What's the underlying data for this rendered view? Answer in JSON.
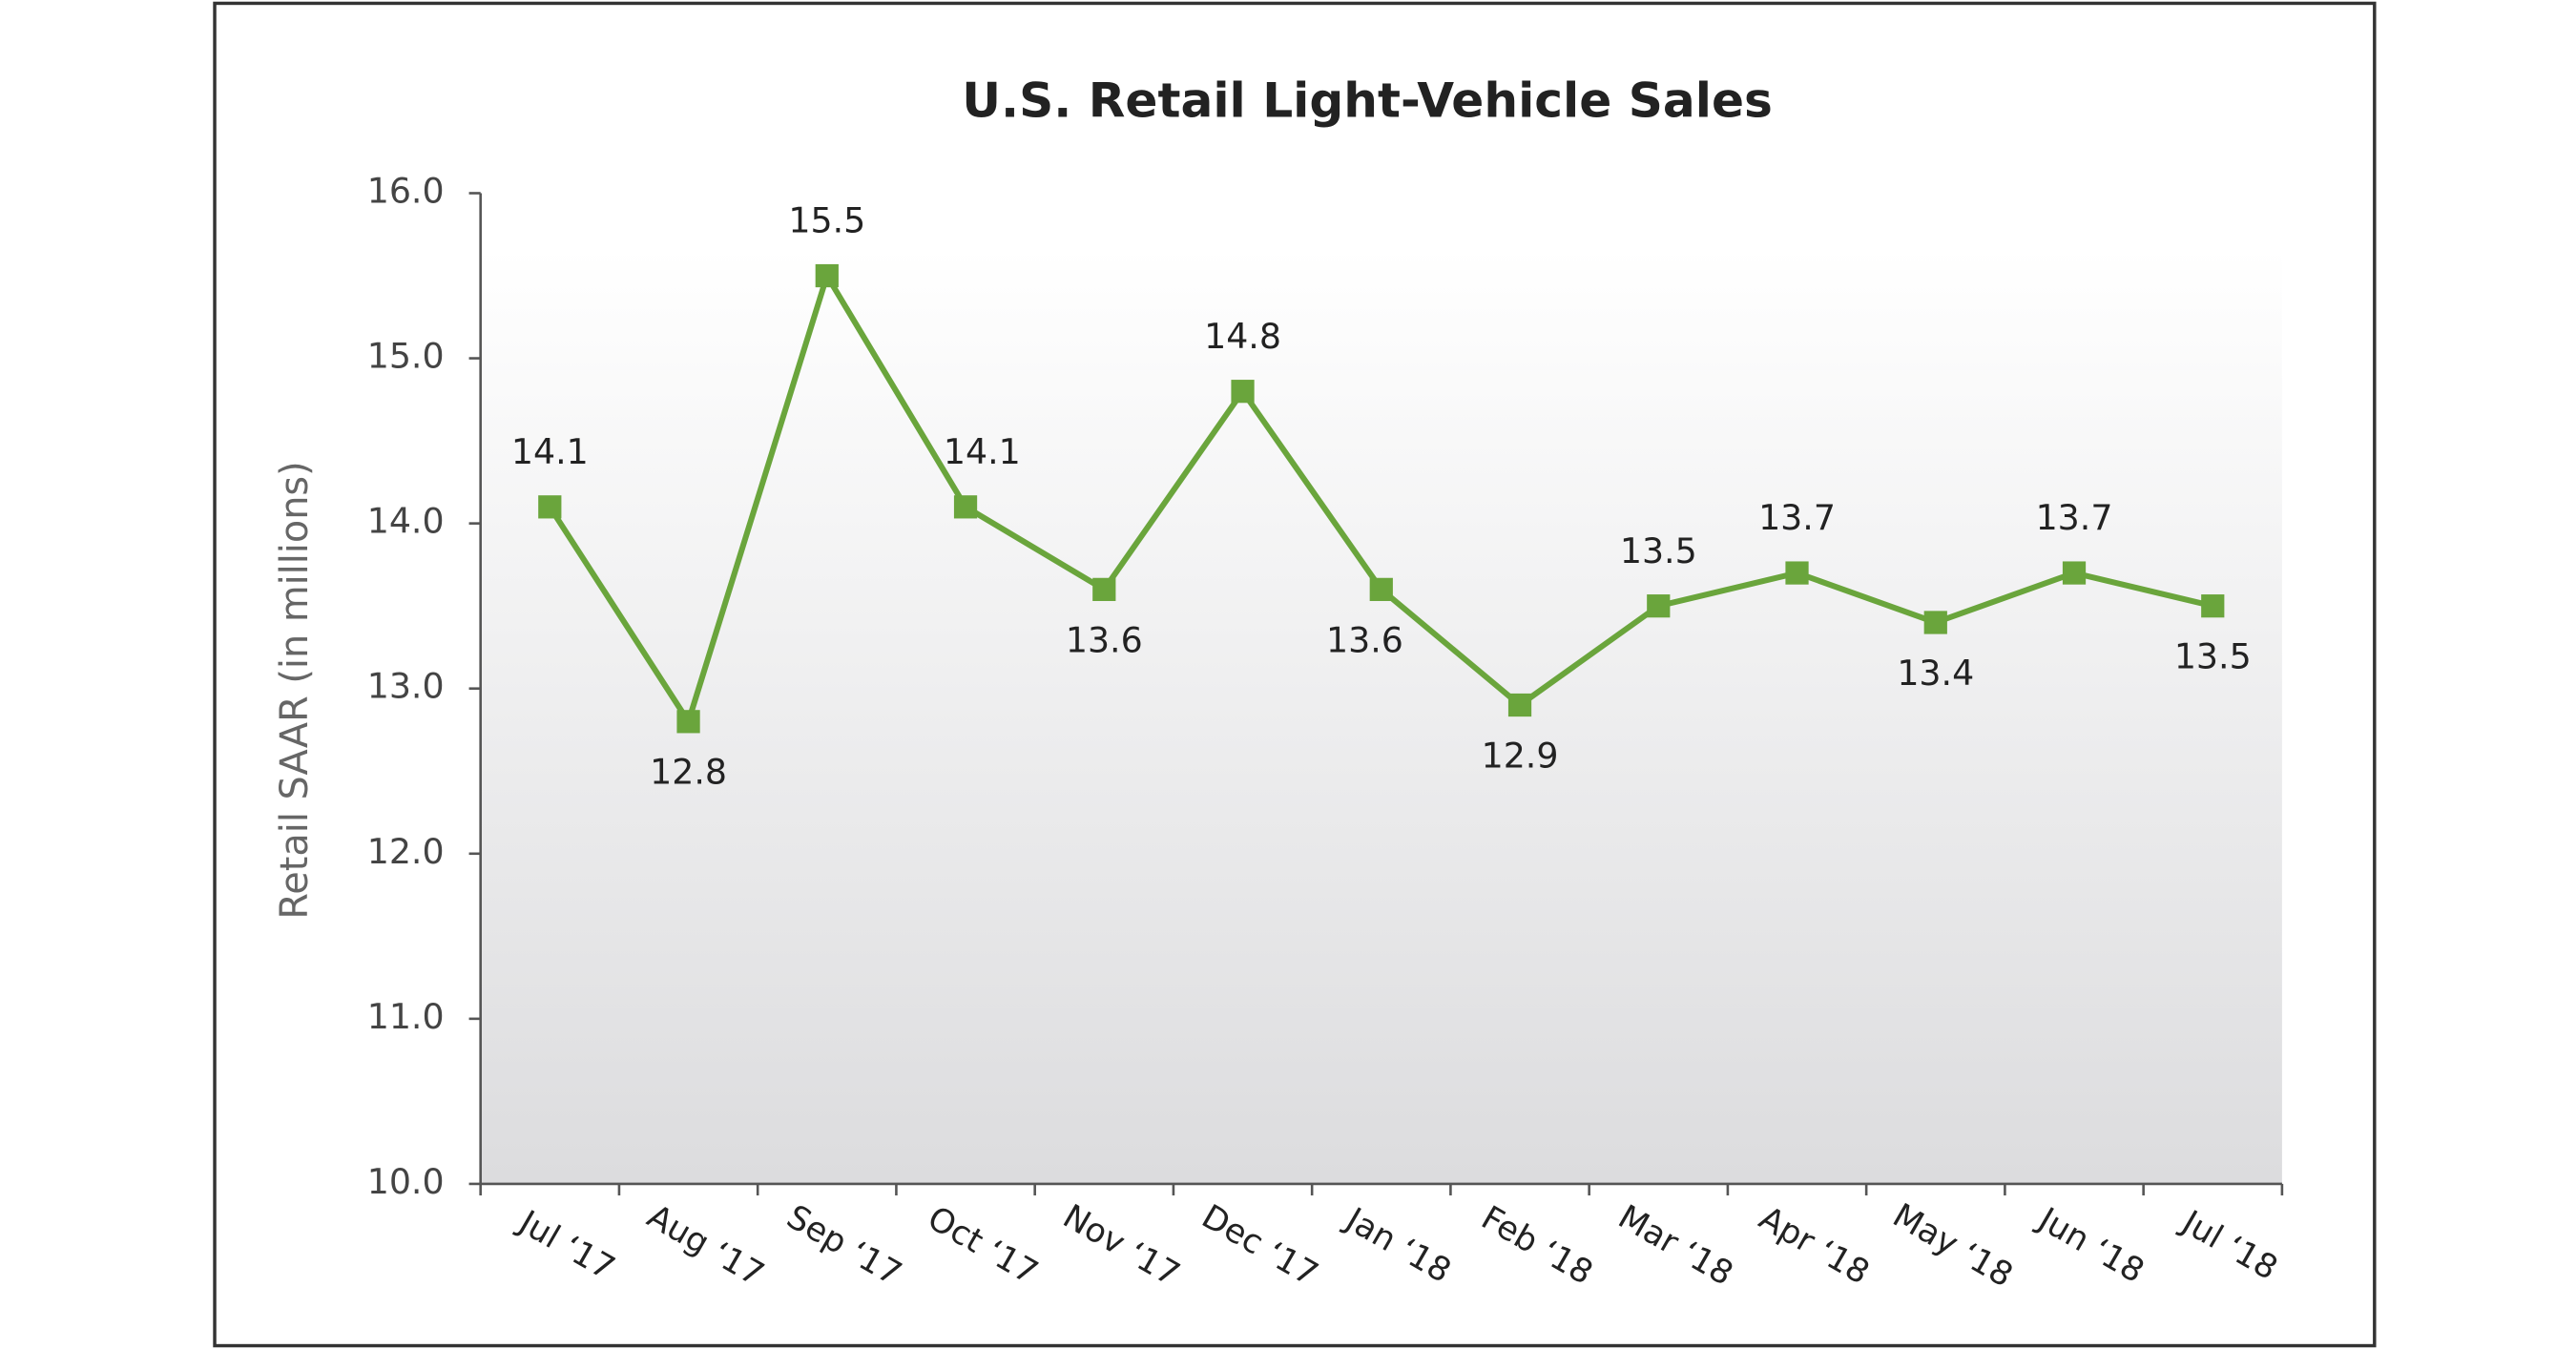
{
  "chart_data": {
    "type": "line",
    "title": "U.S. Retail Light-Vehicle Sales",
    "y_label": "Retail SAAR (in millions)",
    "categories": [
      "Jul ‘17",
      "Aug ‘17",
      "Sep ‘17",
      "Oct ‘17",
      "Nov ‘17",
      "Dec ‘17",
      "Jan ‘18",
      "Feb ‘18",
      "Mar ‘18",
      "Apr ‘18",
      "May ‘18",
      "Jun ‘18",
      "Jul ‘18"
    ],
    "values": [
      14.1,
      12.8,
      15.5,
      14.1,
      13.6,
      14.8,
      13.6,
      12.9,
      13.5,
      13.7,
      13.4,
      13.7,
      13.5
    ],
    "color": "#6aa53c",
    "ylim": [
      10,
      16
    ],
    "yticks": [
      {
        "value": 10,
        "label": "10.0"
      },
      {
        "value": 11,
        "label": "11.0"
      },
      {
        "value": 12,
        "label": "12.0"
      },
      {
        "value": 13,
        "label": "13.0"
      },
      {
        "value": 14,
        "label": "14.0"
      },
      {
        "value": 15,
        "label": "15.0"
      },
      {
        "value": 16,
        "label": "16.0"
      }
    ]
  }
}
